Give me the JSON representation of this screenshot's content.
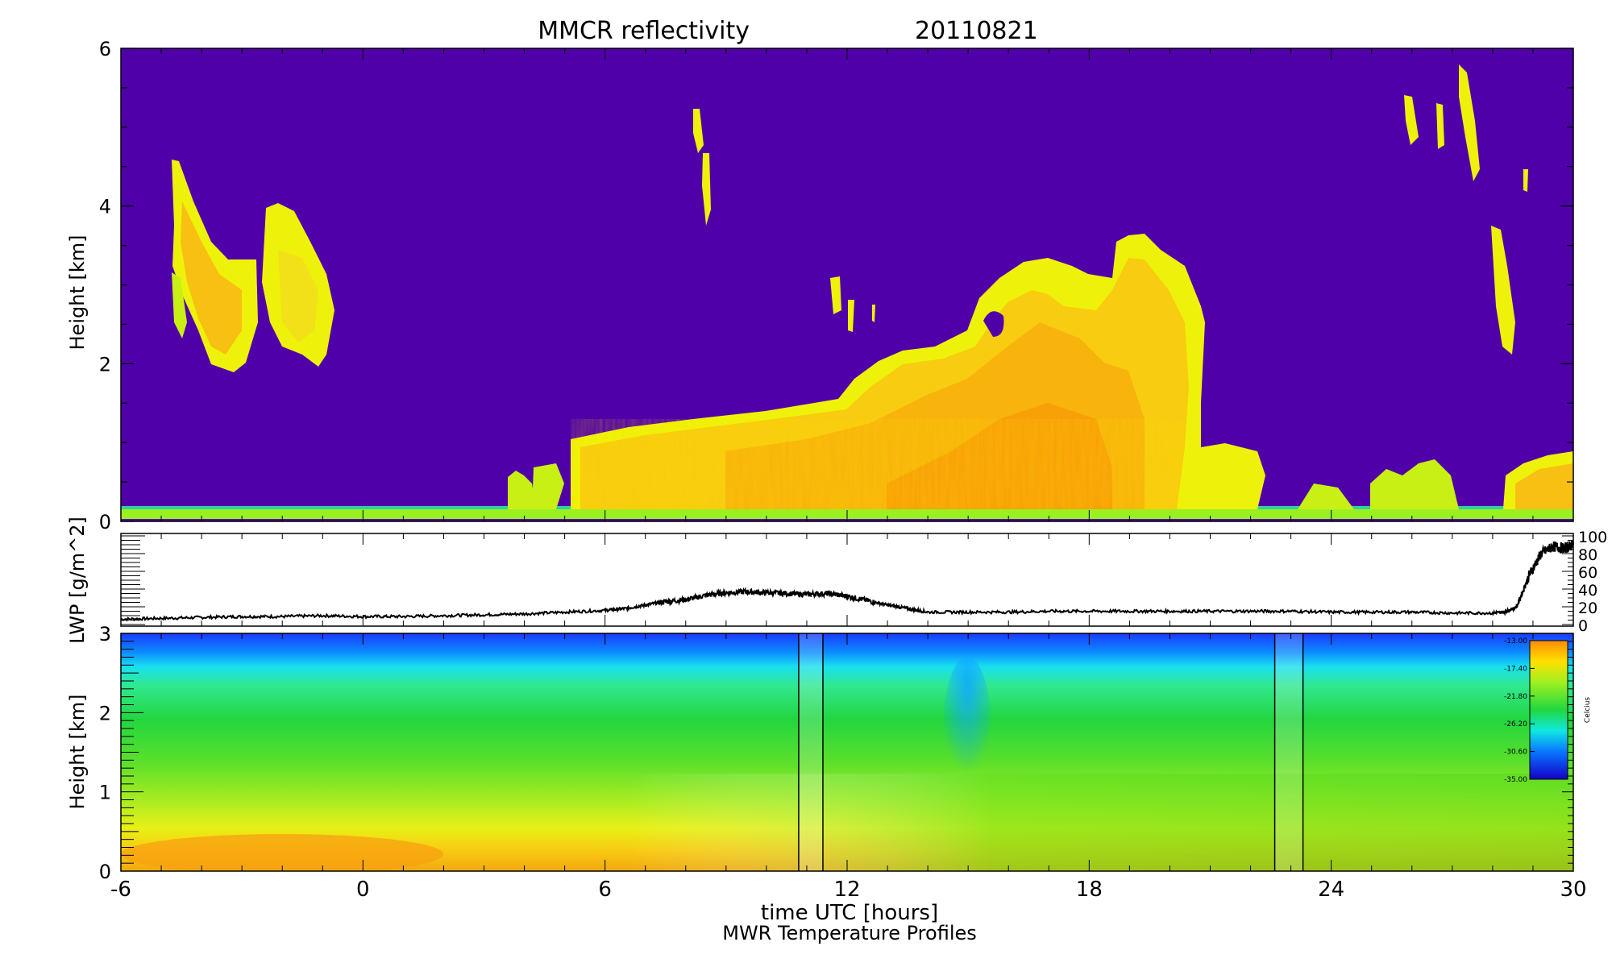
{
  "title": {
    "main": "MMCR reflectivity",
    "date": "20110821"
  },
  "x_axis": {
    "label": "time UTC [hours]",
    "ticks": [
      "-6",
      "0",
      "6",
      "12",
      "18",
      "24",
      "30"
    ]
  },
  "footer": "MWR Temperature Profiles",
  "colors": {
    "background_radar": "#5000a8",
    "plot_frame": "#000000",
    "radar_yellow": "#eef20a",
    "radar_orange": "#ffa800",
    "radar_green": "#78e628"
  },
  "chart_data": [
    {
      "type": "heatmap",
      "title": "MMCR reflectivity",
      "subtitle": "20110821",
      "xlabel": "",
      "ylabel": "Height [km]",
      "xlim": [
        -6,
        30
      ],
      "ylim": [
        0,
        6
      ],
      "xticks": [
        -6,
        0,
        6,
        12,
        18,
        24,
        30
      ],
      "yticks": [
        0,
        2,
        4,
        6
      ],
      "yticklabels": [
        "0",
        "2",
        "4",
        "6"
      ],
      "grid": false,
      "cloud_regions": [
        {
          "t_start": -4.6,
          "t_end": -2.6,
          "base_km": 2.2,
          "top_km": 4.6
        },
        {
          "t_start": -2.5,
          "t_end": -0.7,
          "base_km": 2.1,
          "top_km": 4.0
        },
        {
          "t_start": 8.2,
          "t_end": 8.6,
          "base_km": 3.8,
          "top_km": 5.2
        },
        {
          "t_start": 5.2,
          "t_end": 12.0,
          "base_km": 0.0,
          "top_km": 1.3
        },
        {
          "t_start": 12.0,
          "t_end": 20.5,
          "base_km": 0.0,
          "top_km": 3.8
        },
        {
          "t_start": 20.5,
          "t_end": 22.0,
          "base_km": 0.0,
          "top_km": 0.9
        },
        {
          "t_start": 24.5,
          "t_end": 26.5,
          "base_km": 0.0,
          "top_km": 0.7
        },
        {
          "t_start": 26.0,
          "t_end": 28.2,
          "base_km": 4.3,
          "top_km": 5.8
        },
        {
          "t_start": 26.8,
          "t_end": 27.6,
          "base_km": 2.3,
          "top_km": 3.7
        },
        {
          "t_start": 28.5,
          "t_end": 30.0,
          "base_km": 0.0,
          "top_km": 0.9
        }
      ]
    },
    {
      "type": "line",
      "title": "",
      "xlabel": "",
      "ylabel": "LWP [g/m^2]",
      "xlim": [
        -6,
        30
      ],
      "ylim": [
        0,
        100
      ],
      "yticks": [
        0,
        20,
        40,
        60,
        80,
        100
      ],
      "yticklabels": [
        "0",
        "20",
        "40",
        "60",
        "80",
        "100"
      ],
      "series": [
        {
          "x": [
            -6,
            -5,
            -4,
            -3,
            -2,
            -1,
            0,
            1,
            2,
            3,
            4,
            5,
            6,
            6.5,
            7,
            7.5,
            8,
            8.5,
            9,
            9.5,
            10,
            10.5,
            11,
            11.5,
            12,
            12.5,
            13,
            13.5,
            14,
            15,
            16,
            17,
            18,
            19,
            20,
            21,
            22,
            23,
            24,
            25,
            26,
            27,
            28,
            28.3,
            28.6,
            28.9,
            29.2,
            29.5,
            29.8,
            30
          ],
          "y": [
            6,
            7,
            8,
            9,
            9,
            10,
            9,
            9,
            10,
            11,
            12,
            14,
            16,
            18,
            22,
            26,
            28,
            33,
            36,
            37,
            36,
            35,
            34,
            35,
            32,
            27,
            22,
            18,
            14,
            14,
            14,
            15,
            15,
            15,
            15,
            15,
            15,
            15,
            14,
            14,
            14,
            13,
            13,
            14,
            20,
            55,
            80,
            88,
            86,
            90
          ]
        }
      ]
    },
    {
      "type": "heatmap",
      "title": "",
      "xlabel": "time UTC [hours]",
      "ylabel": "Height [km]",
      "xlim": [
        -6,
        30
      ],
      "ylim": [
        0,
        3
      ],
      "xticks": [
        -6,
        0,
        6,
        12,
        18,
        24,
        30
      ],
      "yticks": [
        0,
        1,
        2,
        3
      ],
      "yticklabels": [
        "0",
        "1",
        "2",
        "3"
      ],
      "data_gaps": [
        [
          10.8,
          11.4
        ],
        [
          22.6,
          23.3
        ]
      ],
      "colorbar": {
        "label": "Celcius",
        "ticks": [
          "-13.00",
          "-17.40",
          "-21.80",
          "-26.20",
          "-30.60",
          "-35.00"
        ]
      }
    }
  ]
}
